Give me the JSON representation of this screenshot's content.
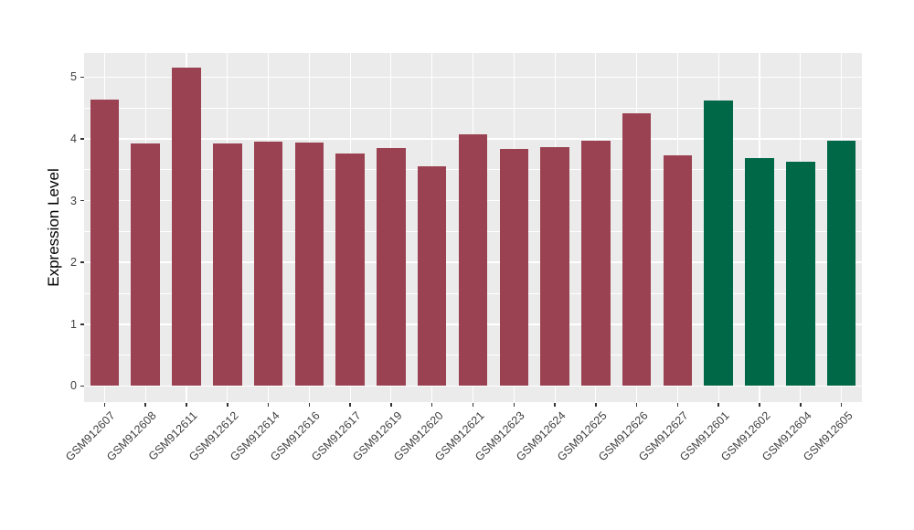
{
  "chart_data": {
    "type": "bar",
    "title": "",
    "xlabel": "",
    "ylabel": "Expression Level",
    "yticks": [
      0,
      1,
      2,
      3,
      4,
      5
    ],
    "ylim": [
      0,
      5.15
    ],
    "grid": "on",
    "legend": "none",
    "panel_background": "#EBEBEB",
    "gridline_color": "#ffffff",
    "categories": [
      "GSM912607",
      "GSM912608",
      "GSM912611",
      "GSM912612",
      "GSM912614",
      "GSM912616",
      "GSM912617",
      "GSM912619",
      "GSM912620",
      "GSM912621",
      "GSM912623",
      "GSM912624",
      "GSM912625",
      "GSM912626",
      "GSM912627",
      "GSM912601",
      "GSM912602",
      "GSM912604",
      "GSM912605"
    ],
    "values": [
      4.63,
      3.92,
      5.15,
      3.92,
      3.96,
      3.94,
      3.76,
      3.85,
      3.56,
      4.08,
      3.83,
      3.87,
      3.97,
      4.41,
      3.73,
      4.62,
      3.69,
      3.63,
      3.97
    ],
    "bar_colors": [
      "#9A4252",
      "#9A4252",
      "#9A4252",
      "#9A4252",
      "#9A4252",
      "#9A4252",
      "#9A4252",
      "#9A4252",
      "#9A4252",
      "#9A4252",
      "#9A4252",
      "#9A4252",
      "#9A4252",
      "#9A4252",
      "#9A4252",
      "#006747",
      "#006747",
      "#006747",
      "#006747"
    ]
  }
}
